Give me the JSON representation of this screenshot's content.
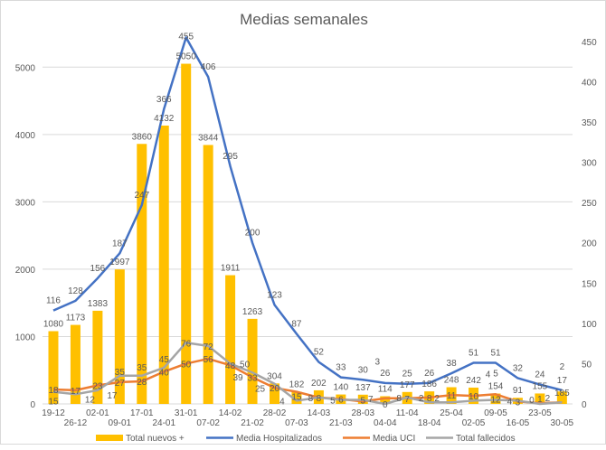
{
  "chart_data": {
    "type": "bar",
    "title": "Medias semanales",
    "categories": [
      "19-12",
      "26-12",
      "02-01",
      "09-01",
      "17-01",
      "24-01",
      "31-01",
      "07-02",
      "14-02",
      "21-02",
      "28-02",
      "07-03",
      "14-03",
      "21-03",
      "28-03",
      "04-04",
      "11-04",
      "18-04",
      "25-04",
      "02-05",
      "09-05",
      "16-05",
      "23-05",
      "30-05"
    ],
    "y_left": {
      "ticks": [
        0,
        1000,
        2000,
        3000,
        4000,
        5000
      ],
      "range": [
        0,
        5500
      ]
    },
    "y_right": {
      "ticks": [
        0,
        50,
        100,
        150,
        200,
        250,
        300,
        350,
        400,
        450
      ],
      "range": [
        0,
        460
      ]
    },
    "grid": true,
    "legend_position": "bottom",
    "series": [
      {
        "name": "Total nuevos +",
        "type": "bar",
        "axis": "left",
        "color": "#FFC000",
        "values": [
          1080,
          1173,
          1383,
          1997,
          3860,
          4132,
          5050,
          3844,
          1911,
          1263,
          304,
          182,
          202,
          140,
          137,
          114,
          177,
          186,
          248,
          242,
          154,
          91,
          155,
          185
        ]
      },
      {
        "name": "Media Hospitalizados",
        "type": "line",
        "axis": "right",
        "color": "#4472C4",
        "values": [
          116,
          128,
          156,
          187,
          247,
          366,
          455,
          406,
          295,
          200,
          123,
          87,
          52,
          33,
          30,
          26,
          25,
          26,
          38,
          51,
          51,
          32,
          24,
          17
        ]
      },
      {
        "name": "Media UCI",
        "type": "line",
        "axis": "right",
        "color": "#ED7D31",
        "values": [
          18,
          17,
          23,
          27,
          28,
          40,
          50,
          56,
          48,
          33,
          20,
          15,
          8,
          6,
          3,
          7,
          7,
          8,
          11,
          10,
          12,
          3,
          1,
          2
        ]
      },
      {
        "name": "Total fallecidos",
        "type": "line",
        "axis": "right",
        "color": "#A5A5A5",
        "values": [
          15,
          12,
          17,
          35,
          35,
          45,
          76,
          72,
          50,
          39,
          25,
          4,
          8,
          5,
          5,
          0,
          8,
          2,
          2,
          4,
          5,
          4,
          0,
          2
        ]
      }
    ]
  }
}
